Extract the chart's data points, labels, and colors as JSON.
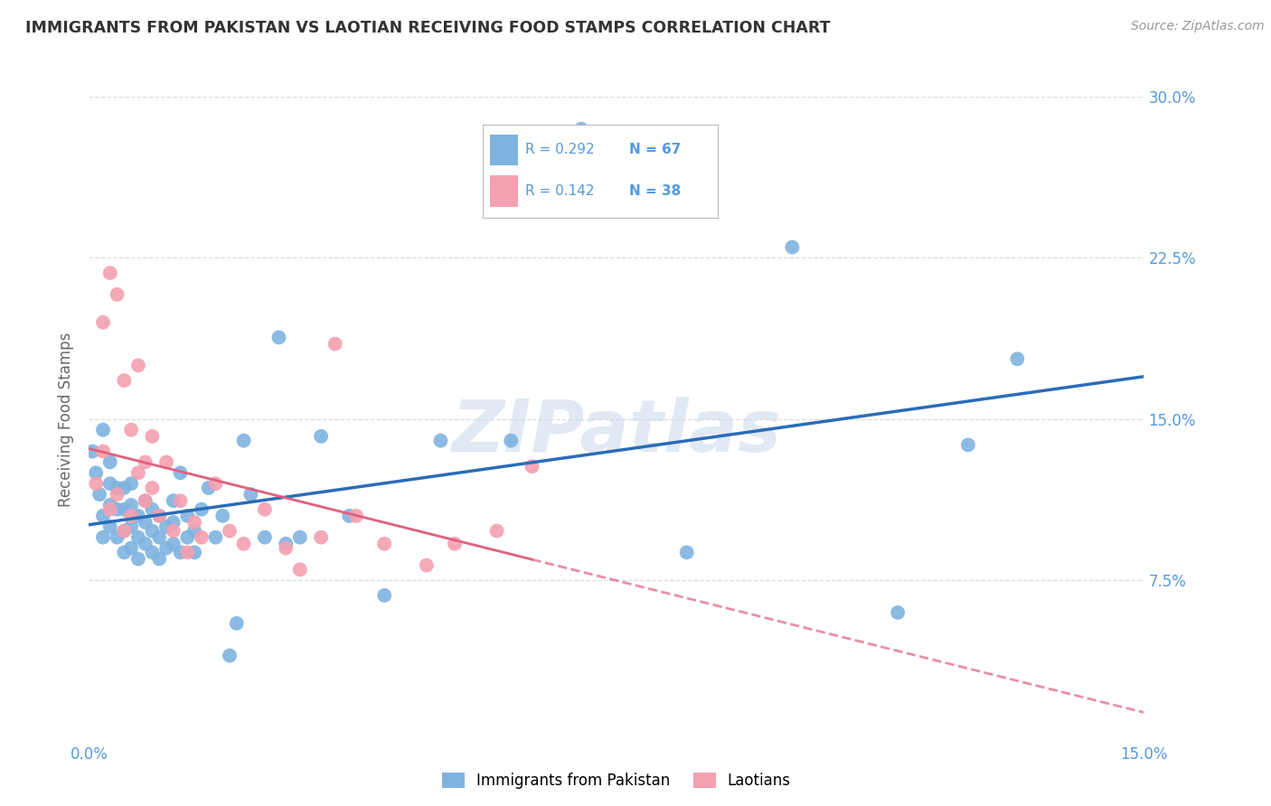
{
  "title": "IMMIGRANTS FROM PAKISTAN VS LAOTIAN RECEIVING FOOD STAMPS CORRELATION CHART",
  "source": "Source: ZipAtlas.com",
  "ylabel": "Receiving Food Stamps",
  "xlim": [
    0.0,
    0.15
  ],
  "ylim": [
    0.0,
    0.3
  ],
  "xticks": [
    0.0,
    0.03,
    0.06,
    0.09,
    0.12,
    0.15
  ],
  "yticks": [
    0.0,
    0.075,
    0.15,
    0.225,
    0.3
  ],
  "xtick_labels": [
    "0.0%",
    "",
    "",
    "",
    "",
    "15.0%"
  ],
  "ytick_labels_right": [
    "",
    "7.5%",
    "15.0%",
    "22.5%",
    "30.0%"
  ],
  "legend_label1": "Immigrants from Pakistan",
  "legend_label2": "Laotians",
  "R1": "0.292",
  "N1": "67",
  "R2": "0.142",
  "N2": "38",
  "color1": "#7EB3E0",
  "color2": "#F4A0B0",
  "line_color1": "#2B6CB8",
  "line_color2": "#E06080",
  "watermark": "ZIPatlas",
  "background_color": "#FFFFFF",
  "grid_color": "#DDDDDD",
  "title_color": "#333333",
  "axis_color": "#5599DD",
  "pk_x": [
    0.0005,
    0.001,
    0.0015,
    0.002,
    0.002,
    0.002,
    0.003,
    0.003,
    0.003,
    0.003,
    0.004,
    0.004,
    0.004,
    0.005,
    0.005,
    0.005,
    0.005,
    0.006,
    0.006,
    0.006,
    0.006,
    0.007,
    0.007,
    0.007,
    0.008,
    0.008,
    0.008,
    0.009,
    0.009,
    0.009,
    0.01,
    0.01,
    0.01,
    0.011,
    0.011,
    0.012,
    0.012,
    0.012,
    0.013,
    0.013,
    0.014,
    0.014,
    0.015,
    0.015,
    0.016,
    0.017,
    0.018,
    0.019,
    0.02,
    0.021,
    0.022,
    0.023,
    0.025,
    0.027,
    0.028,
    0.03,
    0.033,
    0.037,
    0.042,
    0.05,
    0.06,
    0.07,
    0.085,
    0.1,
    0.115,
    0.125,
    0.132
  ],
  "pk_y": [
    0.135,
    0.125,
    0.115,
    0.105,
    0.095,
    0.145,
    0.1,
    0.11,
    0.12,
    0.13,
    0.095,
    0.108,
    0.118,
    0.088,
    0.098,
    0.108,
    0.118,
    0.09,
    0.1,
    0.11,
    0.12,
    0.085,
    0.095,
    0.105,
    0.092,
    0.102,
    0.112,
    0.088,
    0.098,
    0.108,
    0.085,
    0.095,
    0.105,
    0.09,
    0.1,
    0.092,
    0.102,
    0.112,
    0.088,
    0.125,
    0.095,
    0.105,
    0.088,
    0.098,
    0.108,
    0.118,
    0.095,
    0.105,
    0.04,
    0.055,
    0.14,
    0.115,
    0.095,
    0.188,
    0.092,
    0.095,
    0.142,
    0.105,
    0.068,
    0.14,
    0.14,
    0.285,
    0.088,
    0.23,
    0.06,
    0.138,
    0.178
  ],
  "la_x": [
    0.001,
    0.002,
    0.002,
    0.003,
    0.003,
    0.004,
    0.004,
    0.005,
    0.005,
    0.006,
    0.006,
    0.007,
    0.007,
    0.008,
    0.008,
    0.009,
    0.009,
    0.01,
    0.011,
    0.012,
    0.013,
    0.014,
    0.015,
    0.016,
    0.018,
    0.02,
    0.022,
    0.025,
    0.028,
    0.03,
    0.033,
    0.035,
    0.038,
    0.042,
    0.048,
    0.052,
    0.058,
    0.063
  ],
  "la_y": [
    0.12,
    0.135,
    0.195,
    0.108,
    0.218,
    0.115,
    0.208,
    0.098,
    0.168,
    0.105,
    0.145,
    0.125,
    0.175,
    0.112,
    0.13,
    0.142,
    0.118,
    0.105,
    0.13,
    0.098,
    0.112,
    0.088,
    0.102,
    0.095,
    0.12,
    0.098,
    0.092,
    0.108,
    0.09,
    0.08,
    0.095,
    0.185,
    0.105,
    0.092,
    0.082,
    0.092,
    0.098,
    0.128
  ]
}
